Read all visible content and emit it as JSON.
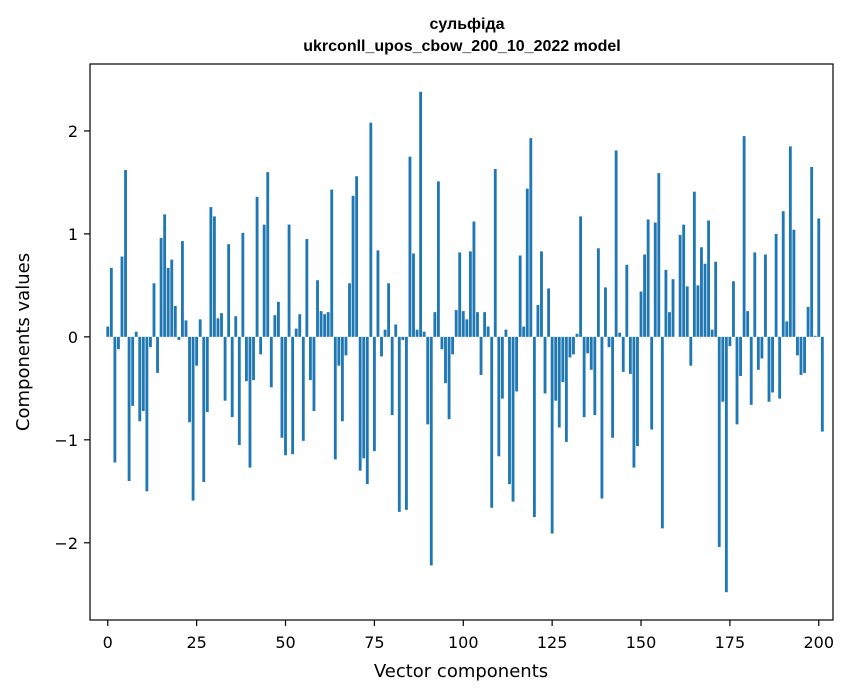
{
  "chart_data": {
    "type": "bar",
    "title": "сульфіда",
    "subtitle": "ukrconll_upos_cbow_200_10_2022 model",
    "xlabel": "Vector components",
    "ylabel": "Components values",
    "xlim": [
      -5,
      204
    ],
    "ylim": [
      -2.75,
      2.65
    ],
    "xticks": [
      0,
      25,
      50,
      75,
      100,
      125,
      150,
      175,
      200
    ],
    "xtick_labels": [
      "0",
      "25",
      "50",
      "75",
      "100",
      "125",
      "150",
      "175",
      "200"
    ],
    "yticks": [
      -2,
      -1,
      0,
      1,
      2
    ],
    "ytick_labels": [
      "−2",
      "−1",
      "0",
      "1",
      "2"
    ],
    "bar_color": "#1f77b4",
    "values": [
      0.1,
      0.67,
      -1.22,
      -0.12,
      0.78,
      1.62,
      -1.4,
      -0.67,
      0.05,
      -0.82,
      -0.72,
      -1.5,
      -0.1,
      0.52,
      -0.35,
      0.96,
      1.19,
      0.67,
      0.75,
      0.3,
      -0.03,
      0.93,
      0.16,
      -0.83,
      -1.59,
      -0.28,
      0.17,
      -1.41,
      -0.73,
      1.26,
      1.17,
      0.18,
      0.23,
      -0.62,
      0.9,
      -0.78,
      0.2,
      -1.05,
      1.01,
      -0.43,
      -1.27,
      -0.42,
      1.36,
      -0.17,
      1.09,
      1.6,
      -0.49,
      0.21,
      0.34,
      -0.98,
      -1.15,
      1.09,
      -1.14,
      0.08,
      0.22,
      -1.01,
      0.95,
      -0.42,
      -0.72,
      0.55,
      0.25,
      0.22,
      0.24,
      1.43,
      -1.19,
      -0.28,
      -0.82,
      -0.18,
      0.52,
      1.37,
      1.56,
      -1.3,
      -1.18,
      -1.43,
      2.08,
      -1.11,
      0.84,
      -0.19,
      0.07,
      0.52,
      -0.76,
      0.12,
      -1.7,
      -0.03,
      -1.68,
      1.75,
      0.81,
      0.07,
      2.38,
      0.05,
      -0.85,
      -2.22,
      0.24,
      1.51,
      -0.12,
      -0.45,
      -0.8,
      -0.17,
      0.26,
      0.82,
      0.25,
      0.17,
      0.83,
      1.12,
      0.24,
      -0.37,
      0.24,
      0.1,
      -1.66,
      1.63,
      -1.16,
      -0.6,
      0.07,
      -1.43,
      -1.6,
      -0.53,
      0.79,
      0.1,
      1.44,
      1.93,
      -1.75,
      0.31,
      0.83,
      -0.55,
      0.47,
      -1.91,
      -0.62,
      -0.88,
      -0.44,
      -1.02,
      -0.2,
      -0.17,
      0.03,
      1.17,
      -0.78,
      -0.16,
      -0.32,
      -0.76,
      0.86,
      -1.57,
      0.48,
      -0.1,
      -0.98,
      1.81,
      0.04,
      -0.34,
      0.7,
      -0.36,
      -1.27,
      -1.06,
      0.44,
      0.8,
      1.14,
      -0.9,
      1.11,
      1.59,
      -1.86,
      0.65,
      0.24,
      0.56,
      0.0,
      0.99,
      1.09,
      0.49,
      -0.28,
      1.41,
      0.5,
      0.87,
      0.71,
      1.13,
      0.07,
      0.73,
      -2.04,
      -0.63,
      -2.48,
      -0.09,
      0.54,
      -0.85,
      -0.38,
      1.95,
      0.25,
      -0.66,
      0.82,
      -0.32,
      -0.21,
      0.8,
      -0.63,
      -0.54,
      1.0,
      -0.6,
      1.22,
      0.15,
      1.85,
      1.04,
      -0.18,
      -0.37,
      -0.35,
      0.29,
      1.65,
      0.01,
      1.15,
      -0.92
    ]
  }
}
